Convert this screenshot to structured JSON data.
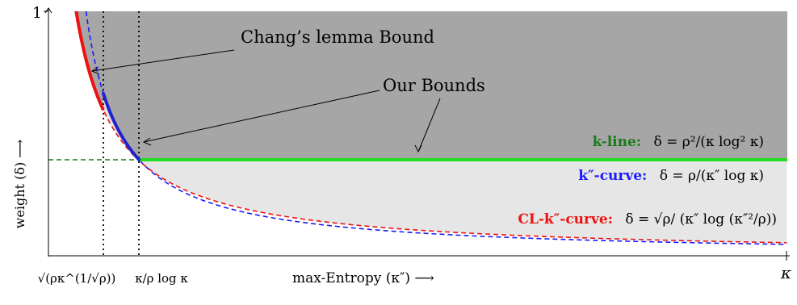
{
  "axes": {
    "y_top_label": "1",
    "y_axis_label": "weight (δ) ⟶",
    "x_axis_label": "max-Entropy (κ″) ⟶",
    "x_right_label": "κ",
    "x_tick_1_label": "√(ρκ^(1/√ρ))",
    "x_tick_2_label": "κ/ρ log κ"
  },
  "annotations": {
    "chang": "Chang’s lemma Bound",
    "ours": "Our Bounds"
  },
  "curves": {
    "k_line": {
      "name": "k-line:",
      "formula": "δ = ρ²/(κ log² κ)",
      "color": "#22dd22",
      "name_color": "#1b7a1b"
    },
    "k2_curve": {
      "name": "k″-curve:",
      "formula": "δ = ρ/(κ″ log κ)",
      "color": "#1a1aff"
    },
    "cl_curve": {
      "name": "CL-k″-curve:",
      "formula": "δ = √ρ/ (κ″ log (κ″²/ρ))",
      "color": "#ee1111"
    },
    "bound_color": "#2222cc",
    "chang_bound_color": "#ee1111"
  },
  "regions": {
    "dark_color": "#a6a6a6",
    "light_color": "#e6e6e6"
  }
}
